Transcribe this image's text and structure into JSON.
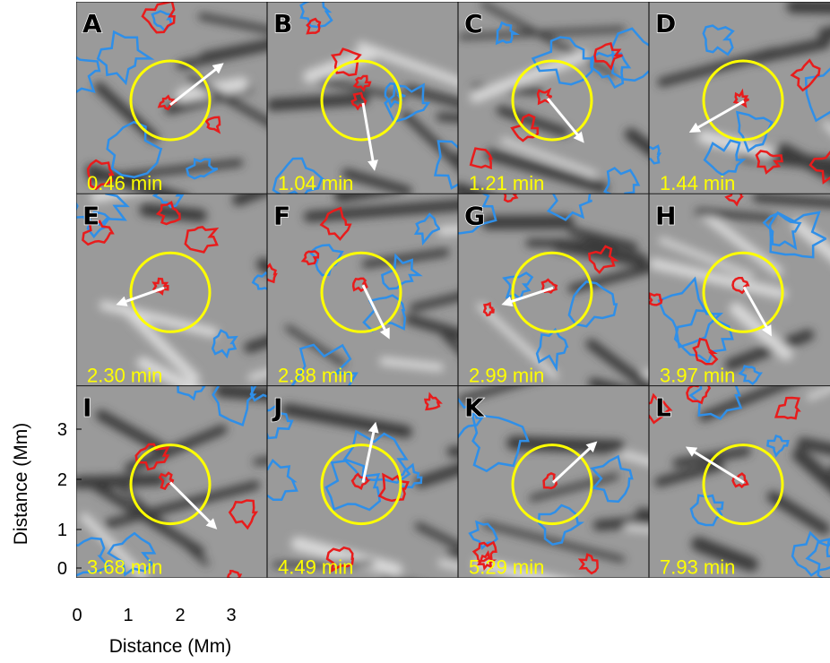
{
  "panels": [
    {
      "letter": "A",
      "time": "0.46 min"
    },
    {
      "letter": "B",
      "time": "1.04 min"
    },
    {
      "letter": "C",
      "time": "1.21 min"
    },
    {
      "letter": "D",
      "time": "1.44 min"
    },
    {
      "letter": "E",
      "time": "2.30 min"
    },
    {
      "letter": "F",
      "time": "2.88 min"
    },
    {
      "letter": "G",
      "time": "2.99 min"
    },
    {
      "letter": "H",
      "time": "3.97 min"
    },
    {
      "letter": "I",
      "time": "3.68 min"
    },
    {
      "letter": "J",
      "time": "4.49 min"
    },
    {
      "letter": "K",
      "time": "5.29 min"
    },
    {
      "letter": "L",
      "time": "7.93 min"
    }
  ],
  "y_axis": {
    "label": "Distance (Mm)",
    "ticks": [
      "0",
      "1",
      "2",
      "3"
    ]
  },
  "x_axis": {
    "label": "Distance (Mm)",
    "ticks": [
      "0",
      "1",
      "2",
      "3"
    ]
  }
}
